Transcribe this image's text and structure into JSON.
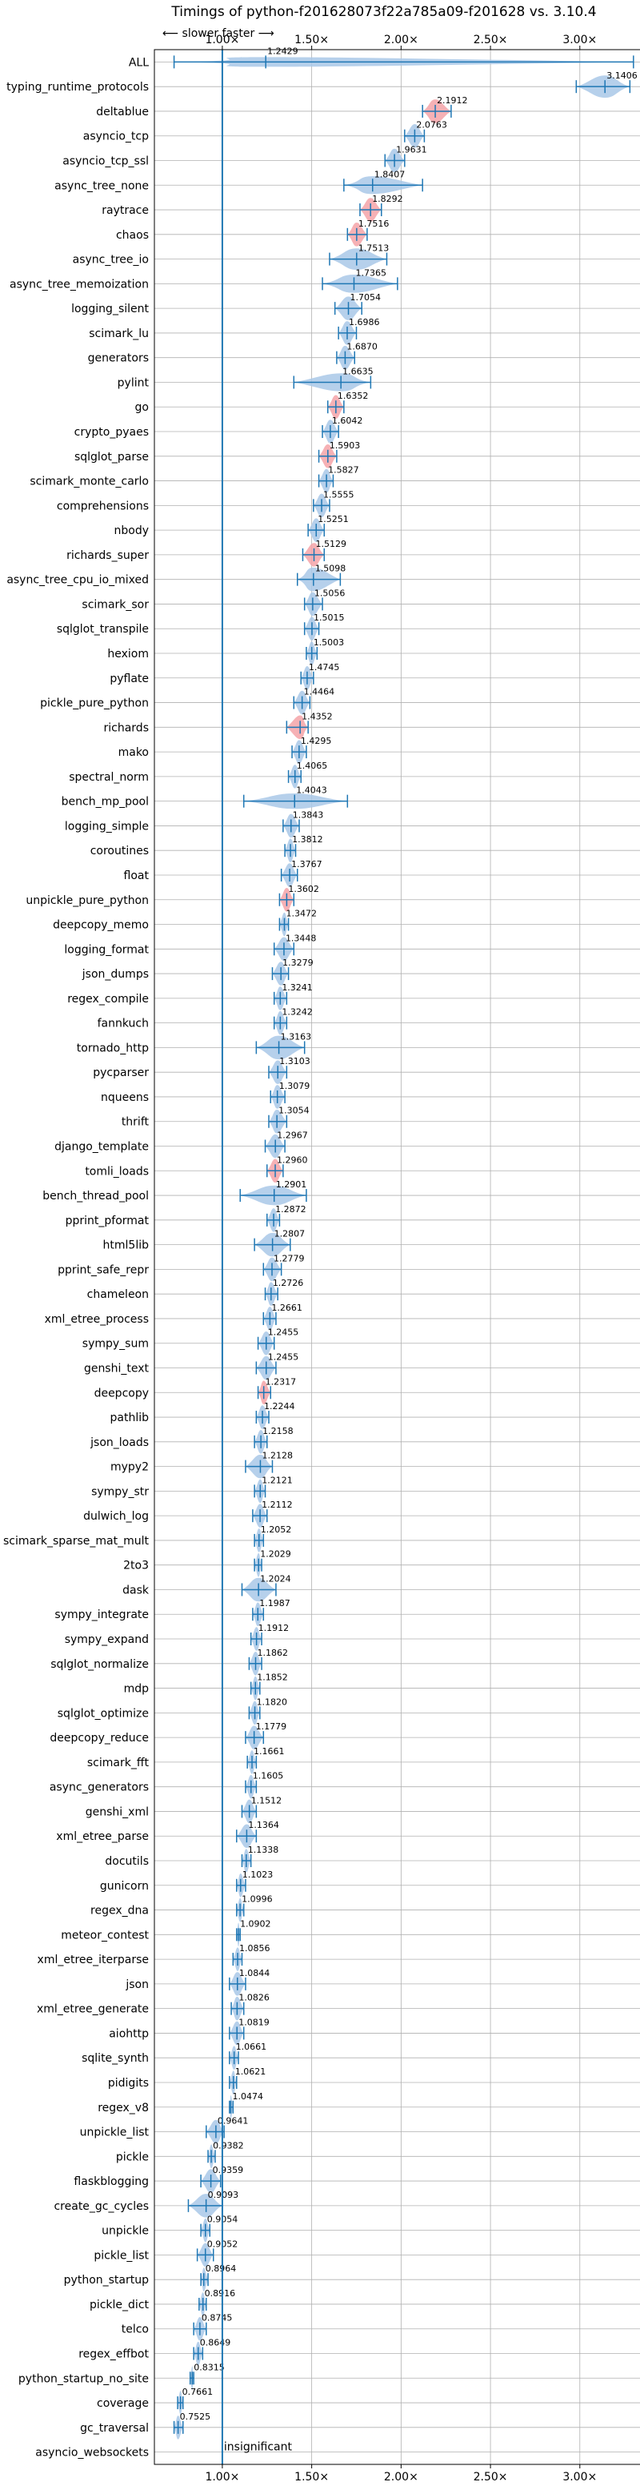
{
  "chart_data": {
    "type": "violin",
    "title": "Timings of python-f201628073f22a785a09-f201628 vs. 3.10.4",
    "direction_note": "⟵ slower   faster ⟶",
    "annotation": "insignificant",
    "xlim": [
      0.62,
      3.35
    ],
    "xticks": [
      1.0,
      1.5,
      2.0,
      2.5,
      3.0
    ],
    "xtick_labels": [
      "1.00×",
      "1.50×",
      "2.00×",
      "2.50×",
      "3.00×"
    ],
    "grid": true,
    "reference_line": 1.0,
    "colors": {
      "violin": "#a9c8e8",
      "line": "#1f77b4",
      "highlight": "#f4a3a8",
      "grid": "#b0b0b0"
    },
    "categories": [
      "ALL",
      "typing_runtime_protocols",
      "deltablue",
      "asyncio_tcp",
      "asyncio_tcp_ssl",
      "async_tree_none",
      "raytrace",
      "chaos",
      "async_tree_io",
      "async_tree_memoization",
      "logging_silent",
      "scimark_lu",
      "generators",
      "pylint",
      "go",
      "crypto_pyaes",
      "sqlglot_parse",
      "scimark_monte_carlo",
      "comprehensions",
      "nbody",
      "richards_super",
      "async_tree_cpu_io_mixed",
      "scimark_sor",
      "sqlglot_transpile",
      "hexiom",
      "pyflate",
      "pickle_pure_python",
      "richards",
      "mako",
      "spectral_norm",
      "bench_mp_pool",
      "logging_simple",
      "coroutines",
      "float",
      "unpickle_pure_python",
      "deepcopy_memo",
      "logging_format",
      "json_dumps",
      "regex_compile",
      "fannkuch",
      "tornado_http",
      "pycparser",
      "nqueens",
      "thrift",
      "django_template",
      "tomli_loads",
      "bench_thread_pool",
      "pprint_pformat",
      "html5lib",
      "pprint_safe_repr",
      "chameleon",
      "xml_etree_process",
      "sympy_sum",
      "genshi_text",
      "deepcopy",
      "pathlib",
      "json_loads",
      "mypy2",
      "sympy_str",
      "dulwich_log",
      "scimark_sparse_mat_mult",
      "2to3",
      "dask",
      "sympy_integrate",
      "sympy_expand",
      "sqlglot_normalize",
      "mdp",
      "sqlglot_optimize",
      "deepcopy_reduce",
      "scimark_fft",
      "async_generators",
      "genshi_xml",
      "xml_etree_parse",
      "docutils",
      "gunicorn",
      "regex_dna",
      "meteor_contest",
      "xml_etree_iterparse",
      "json",
      "xml_etree_generate",
      "aiohttp",
      "sqlite_synth",
      "pidigits",
      "regex_v8",
      "unpickle_list",
      "pickle",
      "flaskblogging",
      "create_gc_cycles",
      "unpickle",
      "pickle_list",
      "python_startup",
      "pickle_dict",
      "telco",
      "regex_effbot",
      "python_startup_no_site",
      "coverage",
      "gc_traversal",
      "asyncio_websockets"
    ],
    "values": [
      1.2429,
      3.1406,
      2.1912,
      2.0763,
      1.9631,
      1.8407,
      1.8292,
      1.7516,
      1.7513,
      1.7365,
      1.7054,
      1.6986,
      1.687,
      1.6635,
      1.6352,
      1.6042,
      1.5903,
      1.5827,
      1.5555,
      1.5251,
      1.5129,
      1.5098,
      1.5056,
      1.5015,
      1.5003,
      1.4745,
      1.4464,
      1.4352,
      1.4295,
      1.4065,
      1.4043,
      1.3843,
      1.3812,
      1.3767,
      1.3602,
      1.3472,
      1.3448,
      1.3279,
      1.3241,
      1.3242,
      1.3163,
      1.3103,
      1.3079,
      1.3054,
      1.2967,
      1.296,
      1.2901,
      1.2872,
      1.2807,
      1.2779,
      1.2726,
      1.2661,
      1.2455,
      1.2455,
      1.2317,
      1.2244,
      1.2158,
      1.2128,
      1.2121,
      1.2112,
      1.2052,
      1.2029,
      1.2024,
      1.1987,
      1.1912,
      1.1862,
      1.1852,
      1.182,
      1.1779,
      1.1661,
      1.1605,
      1.1512,
      1.1364,
      1.1338,
      1.1023,
      1.0996,
      1.0902,
      1.0856,
      1.0844,
      1.0826,
      1.0819,
      1.0661,
      1.0621,
      1.0474,
      0.9641,
      0.9382,
      0.9359,
      0.9093,
      0.9054,
      0.9052,
      0.8964,
      0.8916,
      0.8745,
      0.8649,
      0.8315,
      0.7661,
      0.7525,
      null
    ],
    "value_labels": [
      "1.2429",
      "3.1406",
      "2.1912",
      "2.0763",
      "1.9631",
      "1.8407",
      "1.8292",
      "1.7516",
      "1.7513",
      "1.7365",
      "1.7054",
      "1.6986",
      "1.6870",
      "1.6635",
      "1.6352",
      "1.6042",
      "1.5903",
      "1.5827",
      "1.5555",
      "1.5251",
      "1.5129",
      "1.5098",
      "1.5056",
      "1.5015",
      "1.5003",
      "1.4745",
      "1.4464",
      "1.4352",
      "1.4295",
      "1.4065",
      "1.4043",
      "1.3843",
      "1.3812",
      "1.3767",
      "1.3602",
      "1.3472",
      "1.3448",
      "1.3279",
      "1.3241",
      "1.3242",
      "1.3163",
      "1.3103",
      "1.3079",
      "1.3054",
      "1.2967",
      "1.2960",
      "1.2901",
      "1.2872",
      "1.2807",
      "1.2779",
      "1.2726",
      "1.2661",
      "1.2455",
      "1.2455",
      "1.2317",
      "1.2244",
      "1.2158",
      "1.2128",
      "1.2121",
      "1.2112",
      "1.2052",
      "1.2029",
      "1.2024",
      "1.1987",
      "1.1912",
      "1.1862",
      "1.1852",
      "1.1820",
      "1.1779",
      "1.1661",
      "1.1605",
      "1.1512",
      "1.1364",
      "1.1338",
      "1.1023",
      "1.0996",
      "1.0902",
      "1.0856",
      "1.0844",
      "1.0826",
      "1.0819",
      "1.0661",
      "1.0621",
      "1.0474",
      "0.9641",
      "0.9382",
      "0.9359",
      "0.9093",
      "0.9054",
      "0.9052",
      "0.8964",
      "0.8916",
      "0.8745",
      "0.8649",
      "0.8315",
      "0.7661",
      "0.7525",
      ""
    ],
    "ranges": [
      [
        0.73,
        3.3
      ],
      [
        2.98,
        3.28
      ],
      [
        2.12,
        2.28
      ],
      [
        2.02,
        2.13
      ],
      [
        1.91,
        2.02
      ],
      [
        1.68,
        2.12
      ],
      [
        1.77,
        1.89
      ],
      [
        1.7,
        1.81
      ],
      [
        1.6,
        1.92
      ],
      [
        1.56,
        1.98
      ],
      [
        1.63,
        1.78
      ],
      [
        1.65,
        1.75
      ],
      [
        1.64,
        1.74
      ],
      [
        1.4,
        1.83
      ],
      [
        1.59,
        1.68
      ],
      [
        1.56,
        1.65
      ],
      [
        1.54,
        1.64
      ],
      [
        1.54,
        1.62
      ],
      [
        1.51,
        1.6
      ],
      [
        1.48,
        1.57
      ],
      [
        1.45,
        1.57
      ],
      [
        1.42,
        1.66
      ],
      [
        1.46,
        1.56
      ],
      [
        1.46,
        1.54
      ],
      [
        1.47,
        1.53
      ],
      [
        1.44,
        1.51
      ],
      [
        1.4,
        1.49
      ],
      [
        1.36,
        1.48
      ],
      [
        1.39,
        1.47
      ],
      [
        1.37,
        1.44
      ],
      [
        1.12,
        1.7
      ],
      [
        1.34,
        1.43
      ],
      [
        1.35,
        1.41
      ],
      [
        1.33,
        1.42
      ],
      [
        1.32,
        1.4
      ],
      [
        1.32,
        1.37
      ],
      [
        1.29,
        1.4
      ],
      [
        1.28,
        1.37
      ],
      [
        1.29,
        1.36
      ],
      [
        1.29,
        1.36
      ],
      [
        1.19,
        1.46
      ],
      [
        1.26,
        1.36
      ],
      [
        1.27,
        1.35
      ],
      [
        1.26,
        1.36
      ],
      [
        1.24,
        1.35
      ],
      [
        1.25,
        1.34
      ],
      [
        1.1,
        1.47
      ],
      [
        1.25,
        1.32
      ],
      [
        1.18,
        1.38
      ],
      [
        1.23,
        1.33
      ],
      [
        1.24,
        1.31
      ],
      [
        1.23,
        1.3
      ],
      [
        1.2,
        1.29
      ],
      [
        1.19,
        1.3
      ],
      [
        1.2,
        1.27
      ],
      [
        1.19,
        1.26
      ],
      [
        1.18,
        1.25
      ],
      [
        1.13,
        1.28
      ],
      [
        1.18,
        1.24
      ],
      [
        1.17,
        1.25
      ],
      [
        1.18,
        1.23
      ],
      [
        1.18,
        1.22
      ],
      [
        1.11,
        1.3
      ],
      [
        1.17,
        1.23
      ],
      [
        1.16,
        1.22
      ],
      [
        1.15,
        1.22
      ],
      [
        1.16,
        1.21
      ],
      [
        1.15,
        1.21
      ],
      [
        1.13,
        1.23
      ],
      [
        1.14,
        1.19
      ],
      [
        1.13,
        1.19
      ],
      [
        1.11,
        1.19
      ],
      [
        1.08,
        1.19
      ],
      [
        1.11,
        1.16
      ],
      [
        1.08,
        1.13
      ],
      [
        1.08,
        1.12
      ],
      [
        1.08,
        1.1
      ],
      [
        1.06,
        1.11
      ],
      [
        1.04,
        1.13
      ],
      [
        1.05,
        1.12
      ],
      [
        1.04,
        1.12
      ],
      [
        1.04,
        1.09
      ],
      [
        1.04,
        1.08
      ],
      [
        1.04,
        1.06
      ],
      [
        0.91,
        1.01
      ],
      [
        0.92,
        0.96
      ],
      [
        0.88,
        0.99
      ],
      [
        0.81,
        1.0
      ],
      [
        0.88,
        0.93
      ],
      [
        0.86,
        0.95
      ],
      [
        0.88,
        0.92
      ],
      [
        0.87,
        0.91
      ],
      [
        0.84,
        0.91
      ],
      [
        0.84,
        0.89
      ],
      [
        0.82,
        0.84
      ],
      [
        0.75,
        0.78
      ],
      [
        0.73,
        0.78
      ],
      null
    ],
    "highlighted": [
      false,
      false,
      true,
      false,
      false,
      false,
      true,
      true,
      false,
      false,
      false,
      false,
      false,
      false,
      true,
      false,
      true,
      false,
      false,
      false,
      true,
      false,
      false,
      false,
      false,
      false,
      false,
      true,
      false,
      false,
      false,
      false,
      false,
      false,
      true,
      false,
      false,
      false,
      false,
      false,
      false,
      false,
      false,
      false,
      false,
      true,
      false,
      false,
      false,
      false,
      false,
      false,
      false,
      false,
      true,
      false,
      false,
      false,
      false,
      false,
      false,
      false,
      false,
      false,
      false,
      false,
      false,
      false,
      false,
      false,
      false,
      false,
      false,
      false,
      false,
      false,
      false,
      false,
      false,
      false,
      false,
      false,
      false,
      false,
      false,
      false,
      false,
      false,
      false,
      false,
      false,
      false,
      false,
      false,
      false,
      false,
      false,
      false
    ]
  }
}
